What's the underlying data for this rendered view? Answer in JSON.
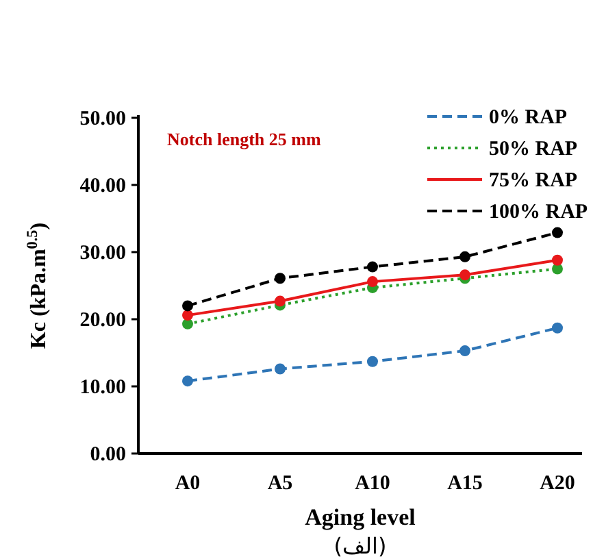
{
  "chart_data": {
    "type": "line",
    "ylabel": "Kc (kPa.m$^{0.5}$)",
    "xlabel": "Aging level",
    "categories": [
      "A0",
      "A5",
      "A10",
      "A15",
      "A20"
    ],
    "ylim": [
      0,
      50
    ],
    "yticks": [
      {
        "value": 0,
        "label": "0.00"
      },
      {
        "value": 10,
        "label": "10.00"
      },
      {
        "value": 20,
        "label": "20.00"
      },
      {
        "value": 30,
        "label": "30.00"
      },
      {
        "value": 40,
        "label": "40.00"
      },
      {
        "value": 50,
        "label": "50.00"
      }
    ],
    "marker": "circle",
    "legend": "top right",
    "grid": false,
    "series": [
      {
        "name": "0% RAP",
        "color": "#2e75b6",
        "line_style": "dashed",
        "values": [
          10.8,
          12.6,
          13.7,
          15.3,
          18.7
        ]
      },
      {
        "name": "50% RAP",
        "color": "#2ca02c",
        "line_style": "dotted",
        "values": [
          19.3,
          22.1,
          24.7,
          26.1,
          27.5
        ]
      },
      {
        "name": "75% RAP",
        "color": "#e8191b",
        "line_style": "solid",
        "values": [
          20.6,
          22.7,
          25.6,
          26.6,
          28.8
        ]
      },
      {
        "name": "100% RAP",
        "color": "#000000",
        "line_style": "dashed",
        "values": [
          22.0,
          26.1,
          27.8,
          29.3,
          32.9
        ]
      }
    ],
    "annotations": [
      "Notch length 25 mm",
      "(الف)"
    ]
  }
}
